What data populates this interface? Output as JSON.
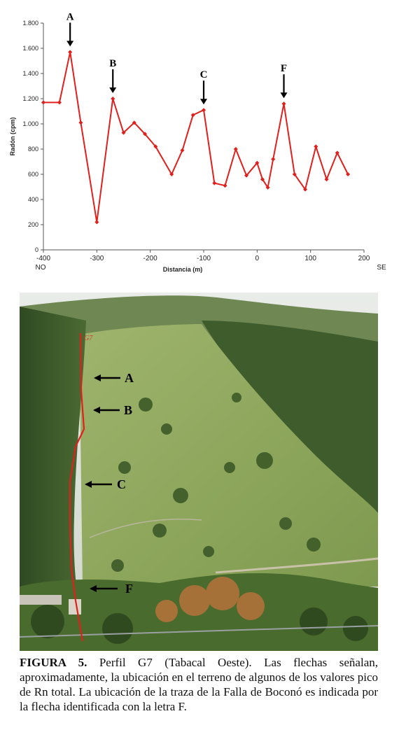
{
  "chart_data": {
    "type": "line",
    "title": "",
    "xlabel": "Distancia (m)",
    "ylabel": "Radón (cpm)",
    "xlim": [
      -400,
      200
    ],
    "ylim": [
      0,
      1800
    ],
    "x_ticks": [
      -400,
      -300,
      -200,
      -100,
      0,
      100,
      200
    ],
    "y_tick_labels": [
      "0",
      "200",
      "400",
      "600",
      "800",
      "1.000",
      "1.200",
      "1.400",
      "1.600",
      "1.800"
    ],
    "y_tick_values": [
      0,
      200,
      400,
      600,
      800,
      1000,
      1200,
      1400,
      1600,
      1800
    ],
    "direction_left": "NO",
    "direction_right": "SE",
    "series_color": "#e0201c",
    "series": [
      {
        "x": [
          -400,
          -370,
          -350,
          -330,
          -300,
          -270,
          -250,
          -230,
          -210,
          -190,
          -160,
          -140,
          -120,
          -100,
          -80,
          -60,
          -40,
          -20,
          0,
          10,
          20,
          30,
          50,
          70,
          90,
          110,
          130,
          150,
          170
        ],
        "y": [
          1170,
          1170,
          1570,
          1010,
          220,
          1200,
          930,
          1010,
          920,
          820,
          600,
          790,
          1070,
          1110,
          530,
          510,
          800,
          590,
          690,
          560,
          495,
          720,
          1160,
          600,
          480,
          820,
          560,
          770,
          600
        ]
      }
    ],
    "annotations": [
      {
        "text": "A",
        "x": -350,
        "y": 1570
      },
      {
        "text": "B",
        "x": -270,
        "y": 1200
      },
      {
        "text": "C",
        "x": -100,
        "y": 1110
      },
      {
        "text": "F",
        "x": 50,
        "y": 1160
      }
    ]
  },
  "photo": {
    "trace_label": "G7",
    "trace_color": "#e0201c",
    "arrows": [
      {
        "text": "A"
      },
      {
        "text": "B"
      },
      {
        "text": "C"
      },
      {
        "text": "F"
      }
    ]
  },
  "caption": {
    "label": "FIGURA 5.",
    "text": " Perfil G7 (Tabacal Oeste). Las flechas señalan, aproximadamente, la ubicación en el terreno de algunos de los valores pico de Rn total. La ubicación de la traza de la Falla de Boconó es indicada por la flecha identificada con la letra F."
  }
}
